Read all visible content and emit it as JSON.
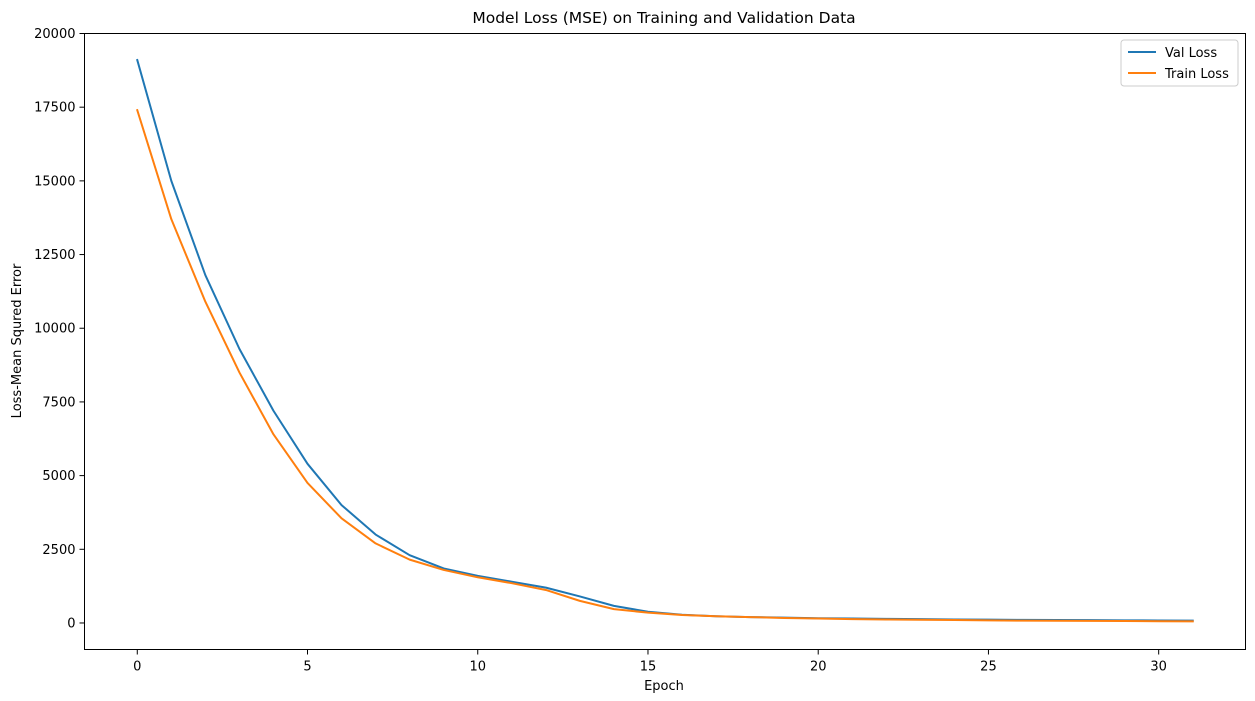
{
  "chart_data": {
    "type": "line",
    "title": "Model Loss (MSE) on Training and Validation Data",
    "xlabel": "Epoch",
    "ylabel": "Loss-Mean Squred Error",
    "xlim": [
      -1.55,
      32.55
    ],
    "ylim": [
      -900,
      20000
    ],
    "xticks": [
      0,
      5,
      10,
      15,
      20,
      25,
      30
    ],
    "yticks": [
      0,
      2500,
      5000,
      7500,
      10000,
      12500,
      15000,
      17500,
      20000
    ],
    "grid": false,
    "legend_position": "top-right",
    "x": [
      0,
      1,
      2,
      3,
      4,
      5,
      6,
      7,
      8,
      9,
      10,
      11,
      12,
      13,
      14,
      15,
      16,
      17,
      18,
      19,
      20,
      21,
      22,
      23,
      24,
      25,
      26,
      27,
      28,
      29,
      30,
      31
    ],
    "series": [
      {
        "name": "Val Loss",
        "color": "#1f77b4",
        "values": [
          19100,
          15000,
          11800,
          9300,
          7200,
          5400,
          4000,
          3000,
          2300,
          1850,
          1600,
          1400,
          1200,
          900,
          580,
          380,
          280,
          230,
          200,
          180,
          160,
          150,
          140,
          130,
          120,
          115,
          105,
          100,
          95,
          90,
          85,
          80
        ]
      },
      {
        "name": "Train Loss",
        "color": "#ff7f0e",
        "values": [
          17400,
          13700,
          10900,
          8500,
          6400,
          4750,
          3550,
          2700,
          2150,
          1800,
          1550,
          1350,
          1120,
          750,
          470,
          350,
          270,
          230,
          200,
          170,
          150,
          130,
          120,
          110,
          100,
          90,
          80,
          75,
          70,
          65,
          60,
          55
        ]
      }
    ]
  }
}
